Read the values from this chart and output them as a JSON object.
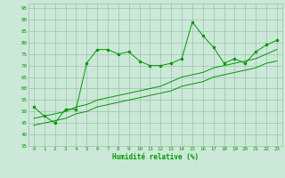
{
  "title": "",
  "xlabel": "Humidité relative (%)",
  "ylabel": "",
  "xlim": [
    -0.5,
    23.5
  ],
  "ylim": [
    35,
    97
  ],
  "yticks": [
    35,
    40,
    45,
    50,
    55,
    60,
    65,
    70,
    75,
    80,
    85,
    90,
    95
  ],
  "xticks": [
    0,
    1,
    2,
    3,
    4,
    5,
    6,
    7,
    8,
    9,
    10,
    11,
    12,
    13,
    14,
    15,
    16,
    17,
    18,
    19,
    20,
    21,
    22,
    23
  ],
  "bg_color": "#cce8d8",
  "grid_color": "#99c4aa",
  "line_color": "#009900",
  "line1_x": [
    0,
    1,
    2,
    3,
    4,
    5,
    6,
    7,
    8,
    9,
    10,
    11,
    12,
    13,
    14,
    15,
    16,
    17,
    18,
    19,
    20,
    21,
    22,
    23
  ],
  "line1_y": [
    52,
    48,
    45,
    51,
    51,
    71,
    77,
    77,
    75,
    76,
    72,
    70,
    70,
    71,
    73,
    89,
    83,
    78,
    71,
    73,
    71,
    76,
    79,
    81
  ],
  "line2_x": [
    0,
    1,
    2,
    3,
    4,
    5,
    6,
    7,
    8,
    9,
    10,
    11,
    12,
    13,
    14,
    15,
    16,
    17,
    18,
    19,
    20,
    21,
    22,
    23
  ],
  "line2_y": [
    44,
    45,
    46,
    47,
    49,
    50,
    52,
    53,
    54,
    55,
    56,
    57,
    58,
    59,
    61,
    62,
    63,
    65,
    66,
    67,
    68,
    69,
    71,
    72
  ],
  "line3_x": [
    0,
    1,
    2,
    3,
    4,
    5,
    6,
    7,
    8,
    9,
    10,
    11,
    12,
    13,
    14,
    15,
    16,
    17,
    18,
    19,
    20,
    21,
    22,
    23
  ],
  "line3_y": [
    47,
    48,
    49,
    50,
    52,
    53,
    55,
    56,
    57,
    58,
    59,
    60,
    61,
    63,
    65,
    66,
    67,
    69,
    70,
    71,
    72,
    73,
    75,
    77
  ],
  "figsize": [
    3.2,
    2.0
  ],
  "dpi": 100
}
